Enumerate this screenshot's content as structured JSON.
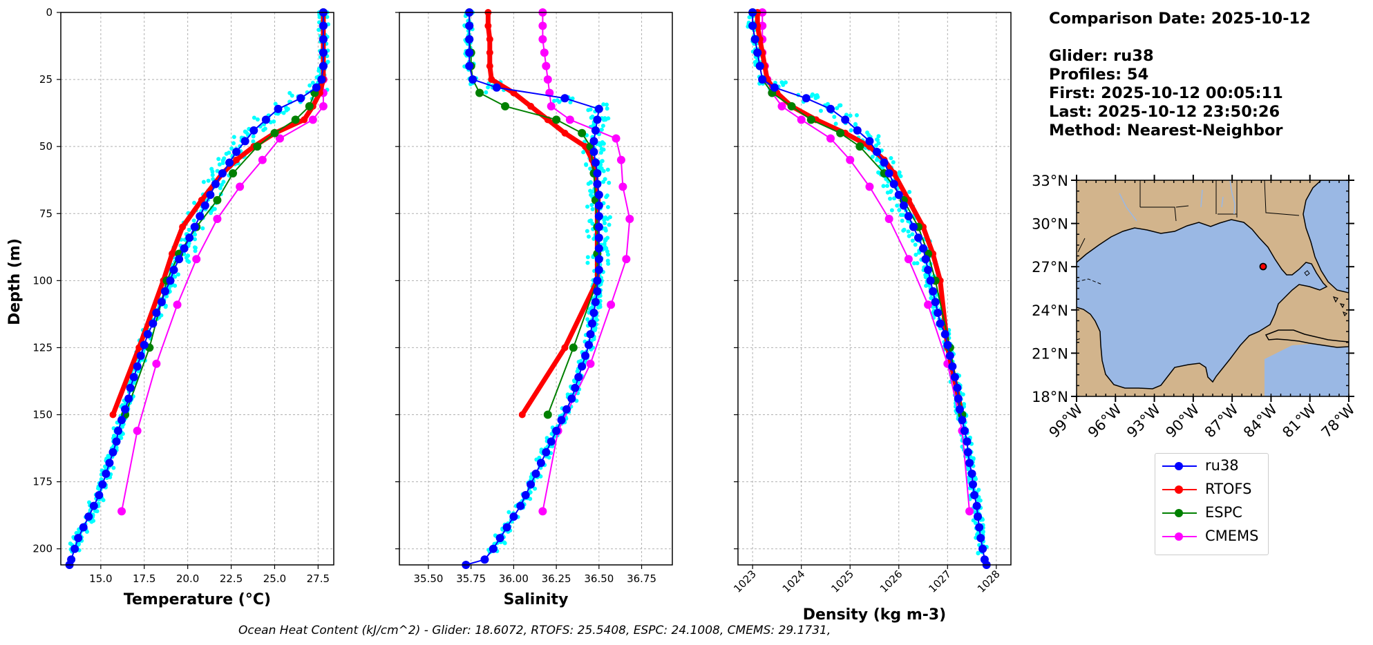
{
  "info": {
    "comparison_date": "Comparison Date: 2025-10-12",
    "glider": "Glider: ru38",
    "profiles": "Profiles: 54",
    "first": "First: 2025-10-12 00:05:11",
    "last": "Last: 2025-10-12 23:50:26",
    "method": "Method: Nearest-Neighbor"
  },
  "ohc_text": "Ocean Heat Content (kJ/cm^2) - Glider: 18.6072,  RTOFS: 25.5408,  ESPC: 24.1008,  CMEMS: 29.1731,",
  "colors": {
    "ru38": "#0000ff",
    "RTOFS": "#ff0000",
    "ESPC": "#008000",
    "CMEMS": "#ff00ff",
    "scatter": "#00ffff",
    "land": "#d2b48c",
    "ocean": "#9ab8e4"
  },
  "legend": [
    {
      "name": "ru38",
      "color": "#0000ff"
    },
    {
      "name": "RTOFS",
      "color": "#ff0000"
    },
    {
      "name": "ESPC",
      "color": "#008000"
    },
    {
      "name": "CMEMS",
      "color": "#ff00ff"
    }
  ],
  "map": {
    "lat_labels": [
      "33°N",
      "30°N",
      "27°N",
      "24°N",
      "21°N",
      "18°N"
    ],
    "lon_labels": [
      "99°W",
      "96°W",
      "93°W",
      "90°W",
      "87°W",
      "84°W",
      "81°W",
      "78°W"
    ],
    "lat_range": [
      18,
      33
    ],
    "lon_range": [
      -99,
      -78
    ],
    "glider_position": [
      -84.4,
      27.3
    ]
  },
  "chart_data": [
    {
      "type": "line",
      "xlabel": "Temperature (°C)",
      "ylabel": "Depth (m)",
      "xlim": [
        12.7,
        28.4
      ],
      "ylim": [
        206,
        0
      ],
      "xticks": [
        15.0,
        17.5,
        20.0,
        22.5,
        25.0,
        27.5
      ],
      "xtick_labels": [
        "15.0",
        "17.5",
        "20.0",
        "22.5",
        "25.0",
        "27.5"
      ],
      "yticks": [
        0,
        25,
        50,
        75,
        100,
        125,
        150,
        175,
        200
      ],
      "ytick_labels": [
        "0",
        "25",
        "50",
        "75",
        "100",
        "125",
        "150",
        "175",
        "200"
      ],
      "series": [
        {
          "name": "ru38",
          "depth": [
            0,
            5,
            10,
            15,
            20,
            25,
            28,
            32,
            36,
            40,
            44,
            48,
            52,
            56,
            60,
            64,
            68,
            72,
            76,
            80,
            84,
            88,
            92,
            96,
            100,
            104,
            108,
            112,
            116,
            120,
            124,
            128,
            132,
            136,
            140,
            144,
            148,
            152,
            156,
            160,
            164,
            168,
            172,
            176,
            180,
            184,
            188,
            192,
            196,
            200,
            204,
            206
          ],
          "values": [
            27.8,
            27.8,
            27.8,
            27.8,
            27.8,
            27.7,
            27.4,
            26.5,
            25.2,
            24.5,
            23.8,
            23.3,
            22.8,
            22.4,
            22.0,
            21.6,
            21.3,
            21.0,
            20.7,
            20.4,
            20.1,
            19.8,
            19.5,
            19.2,
            19.0,
            18.7,
            18.5,
            18.2,
            18.0,
            17.7,
            17.5,
            17.3,
            17.1,
            16.9,
            16.7,
            16.6,
            16.4,
            16.2,
            16.0,
            15.9,
            15.7,
            15.5,
            15.3,
            15.1,
            14.9,
            14.6,
            14.3,
            14.0,
            13.7,
            13.5,
            13.3,
            13.2
          ]
        },
        {
          "name": "RTOFS",
          "depth": [
            0,
            5,
            10,
            15,
            20,
            25,
            30,
            35,
            40,
            45,
            50,
            55,
            60,
            70,
            80,
            90,
            100,
            125,
            150
          ],
          "values": [
            27.8,
            27.8,
            27.8,
            27.8,
            27.8,
            27.8,
            27.6,
            27.2,
            26.7,
            25.0,
            23.8,
            22.8,
            22.0,
            20.8,
            19.7,
            19.1,
            18.6,
            17.2,
            15.7
          ]
        },
        {
          "name": "ESPC",
          "depth": [
            0,
            5,
            10,
            15,
            20,
            25,
            30,
            35,
            40,
            45,
            50,
            60,
            70,
            80,
            90,
            100,
            125,
            150
          ],
          "values": [
            27.8,
            27.8,
            27.8,
            27.8,
            27.8,
            27.7,
            27.3,
            27.0,
            26.2,
            25.0,
            24.0,
            22.6,
            21.7,
            20.5,
            19.5,
            18.8,
            17.8,
            16.4
          ]
        },
        {
          "name": "CMEMS",
          "depth": [
            0,
            5,
            10,
            15,
            20,
            25,
            30,
            35,
            40,
            47,
            55,
            65,
            77,
            92,
            109,
            131,
            156,
            186
          ],
          "values": [
            27.8,
            27.8,
            27.8,
            27.8,
            27.8,
            27.8,
            27.8,
            27.8,
            27.2,
            25.3,
            24.3,
            23.0,
            21.7,
            20.5,
            19.4,
            18.2,
            17.1,
            16.2
          ]
        }
      ]
    },
    {
      "type": "line",
      "xlabel": "Salinity",
      "xlim": [
        35.33,
        36.93
      ],
      "ylim": [
        206,
        0
      ],
      "xticks": [
        35.5,
        35.75,
        36.0,
        36.25,
        36.5,
        36.75
      ],
      "xtick_labels": [
        "35.50",
        "35.75",
        "36.00",
        "36.25",
        "36.50",
        "36.75"
      ],
      "series": [
        {
          "name": "ru38",
          "depth": [
            0,
            5,
            10,
            15,
            20,
            25,
            28,
            32,
            36,
            40,
            44,
            48,
            52,
            56,
            60,
            64,
            68,
            72,
            76,
            80,
            84,
            88,
            92,
            96,
            100,
            104,
            108,
            112,
            116,
            120,
            124,
            128,
            132,
            136,
            140,
            144,
            148,
            152,
            156,
            160,
            164,
            168,
            172,
            176,
            180,
            184,
            188,
            192,
            196,
            200,
            204,
            206
          ],
          "values": [
            35.74,
            35.74,
            35.74,
            35.74,
            35.74,
            35.76,
            35.9,
            36.3,
            36.5,
            36.49,
            36.48,
            36.47,
            36.47,
            36.48,
            36.49,
            36.49,
            36.5,
            36.5,
            36.5,
            36.5,
            36.5,
            36.5,
            36.5,
            36.5,
            36.49,
            36.49,
            36.48,
            36.47,
            36.46,
            36.45,
            36.44,
            36.42,
            36.4,
            36.38,
            36.36,
            36.34,
            36.31,
            36.28,
            36.25,
            36.22,
            36.19,
            36.16,
            36.13,
            36.1,
            36.07,
            36.04,
            36.0,
            35.96,
            35.92,
            35.88,
            35.83,
            35.72
          ]
        },
        {
          "name": "RTOFS",
          "depth": [
            0,
            5,
            10,
            15,
            20,
            25,
            30,
            35,
            40,
            45,
            50,
            55,
            60,
            70,
            80,
            90,
            100,
            125,
            150
          ],
          "values": [
            35.85,
            35.85,
            35.86,
            35.86,
            35.86,
            35.87,
            36.0,
            36.1,
            36.2,
            36.3,
            36.42,
            36.46,
            36.48,
            36.49,
            36.49,
            36.49,
            36.49,
            36.3,
            36.05
          ]
        },
        {
          "name": "ESPC",
          "depth": [
            0,
            5,
            10,
            15,
            20,
            25,
            30,
            35,
            40,
            45,
            50,
            60,
            70,
            80,
            90,
            100,
            125,
            150
          ],
          "values": [
            35.74,
            35.74,
            35.74,
            35.75,
            35.75,
            35.76,
            35.8,
            35.95,
            36.25,
            36.4,
            36.45,
            36.47,
            36.48,
            36.49,
            36.49,
            36.49,
            36.35,
            36.2
          ]
        },
        {
          "name": "CMEMS",
          "depth": [
            0,
            5,
            10,
            15,
            20,
            25,
            30,
            35,
            40,
            47,
            55,
            65,
            77,
            92,
            109,
            131,
            156,
            186
          ],
          "values": [
            36.17,
            36.17,
            36.17,
            36.18,
            36.19,
            36.2,
            36.21,
            36.22,
            36.33,
            36.6,
            36.63,
            36.64,
            36.68,
            36.66,
            36.57,
            36.45,
            36.26,
            36.17
          ]
        }
      ]
    },
    {
      "type": "line",
      "xlabel": "Density (kg m-3)",
      "xlim": [
        1022.7,
        1028.3
      ],
      "ylim": [
        206,
        0
      ],
      "xticks": [
        1023,
        1024,
        1025,
        1026,
        1027,
        1028
      ],
      "xtick_labels": [
        "1023",
        "1024",
        "1025",
        "1026",
        "1027",
        "1028"
      ],
      "series": [
        {
          "name": "ru38",
          "depth": [
            0,
            5,
            10,
            15,
            20,
            25,
            28,
            32,
            36,
            40,
            44,
            48,
            52,
            56,
            60,
            64,
            68,
            72,
            76,
            80,
            84,
            88,
            92,
            96,
            100,
            104,
            108,
            112,
            116,
            120,
            124,
            128,
            132,
            136,
            140,
            144,
            148,
            152,
            156,
            160,
            164,
            168,
            172,
            176,
            180,
            184,
            188,
            192,
            196,
            200,
            204,
            206
          ],
          "values": [
            1023.0,
            1023.0,
            1023.05,
            1023.1,
            1023.15,
            1023.2,
            1023.45,
            1024.1,
            1024.6,
            1024.9,
            1025.15,
            1025.4,
            1025.55,
            1025.7,
            1025.8,
            1025.9,
            1026.0,
            1026.1,
            1026.2,
            1026.3,
            1026.4,
            1026.5,
            1026.55,
            1026.6,
            1026.65,
            1026.7,
            1026.75,
            1026.8,
            1026.85,
            1026.95,
            1027.0,
            1027.05,
            1027.1,
            1027.15,
            1027.2,
            1027.22,
            1027.25,
            1027.3,
            1027.35,
            1027.4,
            1027.42,
            1027.45,
            1027.5,
            1027.52,
            1027.55,
            1027.6,
            1027.62,
            1027.65,
            1027.68,
            1027.72,
            1027.76,
            1027.8
          ]
        },
        {
          "name": "RTOFS",
          "depth": [
            0,
            5,
            10,
            15,
            20,
            25,
            30,
            35,
            40,
            45,
            50,
            55,
            60,
            70,
            80,
            90,
            100,
            125,
            150
          ],
          "values": [
            1023.1,
            1023.1,
            1023.15,
            1023.2,
            1023.25,
            1023.3,
            1023.5,
            1023.8,
            1024.3,
            1024.9,
            1025.4,
            1025.7,
            1025.9,
            1026.2,
            1026.5,
            1026.7,
            1026.85,
            1027.0,
            1027.3
          ]
        },
        {
          "name": "ESPC",
          "depth": [
            0,
            5,
            10,
            15,
            20,
            25,
            30,
            35,
            40,
            45,
            50,
            60,
            70,
            80,
            90,
            100,
            125,
            150
          ],
          "values": [
            1023.0,
            1023.0,
            1023.05,
            1023.1,
            1023.15,
            1023.2,
            1023.4,
            1023.8,
            1024.2,
            1024.8,
            1025.2,
            1025.7,
            1026.1,
            1026.4,
            1026.6,
            1026.75,
            1027.05,
            1027.3
          ]
        },
        {
          "name": "CMEMS",
          "depth": [
            0,
            5,
            10,
            15,
            20,
            25,
            30,
            35,
            40,
            47,
            55,
            65,
            77,
            92,
            109,
            131,
            156,
            186
          ],
          "values": [
            1023.2,
            1023.2,
            1023.2,
            1023.2,
            1023.25,
            1023.3,
            1023.4,
            1023.6,
            1024.0,
            1024.6,
            1025.0,
            1025.4,
            1025.8,
            1026.2,
            1026.6,
            1027.0,
            1027.3,
            1027.45
          ]
        }
      ]
    }
  ]
}
